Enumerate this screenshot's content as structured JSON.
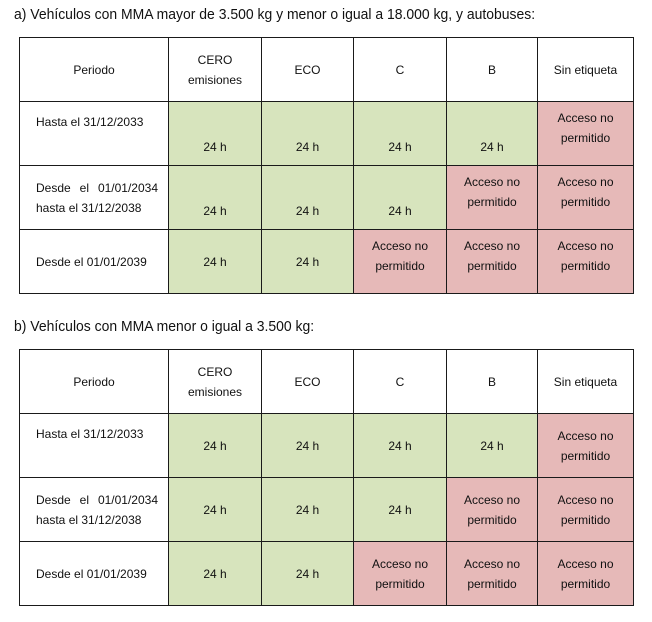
{
  "section_a": {
    "heading": "a) Vehículos con MMA mayor de 3.500 kg y menor o igual a 18.000 kg, y autobuses:",
    "headers": [
      "Periodo",
      "CERO",
      "emisiones",
      "ECO",
      "C",
      "B",
      "Sin etiqueta"
    ],
    "rows": [
      {
        "period_1": "Hasta el 31/12/2033",
        "period_2": "",
        "cells": [
          "24 h",
          "24 h",
          "24 h",
          "24 h",
          "Acceso no|permitido"
        ]
      },
      {
        "period_1a": "Desde",
        "period_1b": "el",
        "period_1c": "01/01/2034",
        "period_2": "hasta el 31/12/2038",
        "cells": [
          "24 h",
          "24 h",
          "24 h",
          "Acceso no|permitido",
          "Acceso no|permitido"
        ]
      },
      {
        "period_1": "Desde el 01/01/2039",
        "period_2": "",
        "cells": [
          "24 h",
          "24 h",
          "Acceso no|permitido",
          "Acceso no|permitido",
          "Acceso no|permitido"
        ]
      }
    ]
  },
  "section_b": {
    "heading": "b) Vehículos con MMA menor o igual a 3.500 kg:",
    "headers": [
      "Periodo",
      "CERO",
      "emisiones",
      "ECO",
      "C",
      "B",
      "Sin etiqueta"
    ],
    "rows": [
      {
        "period_1": "Hasta el 31/12/2033"
      },
      {
        "period_1a": "Desde",
        "period_1b": "el",
        "period_1c": "01/01/2034",
        "period_2": "hasta el 31/12/2038"
      },
      {
        "period_1": "Desde el 01/01/2039"
      }
    ]
  },
  "cell_text": {
    "h24": "24 h",
    "no_1": "Acceso no",
    "no_2": "permitido"
  },
  "colors": {
    "allowed": "#d7e4bd",
    "not_allowed": "#e6b9b8"
  }
}
